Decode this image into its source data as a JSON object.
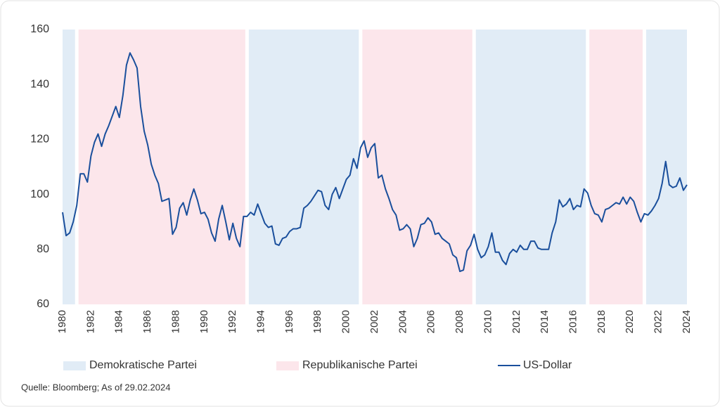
{
  "chart_data": {
    "type": "line",
    "xlim": [
      1980,
      2024
    ],
    "xticks": [
      1980,
      1982,
      1984,
      1986,
      1988,
      1990,
      1992,
      1994,
      1996,
      1998,
      2000,
      2002,
      2004,
      2006,
      2008,
      2010,
      2012,
      2014,
      2016,
      2018,
      2020,
      2022,
      2024
    ],
    "ylim": [
      60,
      160
    ],
    "yticks": [
      60,
      80,
      100,
      120,
      140,
      160
    ],
    "shading": [
      {
        "name": "Demokratische Partei",
        "color": "#e1ecf6",
        "spans": [
          [
            1980,
            1981
          ],
          [
            1993,
            2001
          ],
          [
            2009,
            2017
          ],
          [
            2021,
            2024
          ]
        ]
      },
      {
        "name": "Republikanische Partei",
        "color": "#fce6eb",
        "spans": [
          [
            1981,
            1993
          ],
          [
            2001,
            2009
          ],
          [
            2017,
            2021
          ]
        ]
      }
    ],
    "x": [
      1980,
      1980.25,
      1980.5,
      1980.75,
      1981,
      1981.25,
      1981.5,
      1981.75,
      1982,
      1982.25,
      1982.5,
      1982.75,
      1983,
      1983.25,
      1983.5,
      1983.75,
      1984,
      1984.25,
      1984.5,
      1984.75,
      1985,
      1985.25,
      1985.5,
      1985.75,
      1986,
      1986.25,
      1986.5,
      1986.75,
      1987,
      1987.25,
      1987.5,
      1987.75,
      1988,
      1988.25,
      1988.5,
      1988.75,
      1989,
      1989.25,
      1989.5,
      1989.75,
      1990,
      1990.25,
      1990.5,
      1990.75,
      1991,
      1991.25,
      1991.5,
      1991.75,
      1992,
      1992.25,
      1992.5,
      1992.75,
      1993,
      1993.25,
      1993.5,
      1993.75,
      1994,
      1994.25,
      1994.5,
      1994.75,
      1995,
      1995.25,
      1995.5,
      1995.75,
      1996,
      1996.25,
      1996.5,
      1996.75,
      1997,
      1997.25,
      1997.5,
      1997.75,
      1998,
      1998.25,
      1998.5,
      1998.75,
      1999,
      1999.25,
      1999.5,
      1999.75,
      2000,
      2000.25,
      2000.5,
      2000.75,
      2001,
      2001.25,
      2001.5,
      2001.75,
      2002,
      2002.25,
      2002.5,
      2002.75,
      2003,
      2003.25,
      2003.5,
      2003.75,
      2004,
      2004.25,
      2004.5,
      2004.75,
      2005,
      2005.25,
      2005.5,
      2005.75,
      2006,
      2006.25,
      2006.5,
      2006.75,
      2007,
      2007.25,
      2007.5,
      2007.75,
      2008,
      2008.25,
      2008.5,
      2008.75,
      2009,
      2009.25,
      2009.5,
      2009.75,
      2010,
      2010.25,
      2010.5,
      2010.75,
      2011,
      2011.25,
      2011.5,
      2011.75,
      2012,
      2012.25,
      2012.5,
      2012.75,
      2013,
      2013.25,
      2013.5,
      2013.75,
      2014,
      2014.25,
      2014.5,
      2014.75,
      2015,
      2015.25,
      2015.5,
      2015.75,
      2016,
      2016.25,
      2016.5,
      2016.75,
      2017,
      2017.25,
      2017.5,
      2017.75,
      2018,
      2018.25,
      2018.5,
      2018.75,
      2019,
      2019.25,
      2019.5,
      2019.75,
      2020,
      2020.25,
      2020.5,
      2020.75,
      2021,
      2021.25,
      2021.5,
      2021.75,
      2022,
      2022.25,
      2022.5,
      2022.75,
      2023,
      2023.25,
      2023.5,
      2023.75,
      2024
    ],
    "series": [
      {
        "name": "US-Dollar",
        "color": "#1a4f9c",
        "values": [
          93.5,
          85,
          86,
          90,
          96,
          107.5,
          107.5,
          104.5,
          114,
          119,
          122,
          117.5,
          122,
          125,
          128.5,
          132,
          128,
          136,
          147,
          151.5,
          149,
          146,
          132,
          123,
          118,
          111,
          107,
          104,
          97.5,
          98,
          98.5,
          85.5,
          88,
          95,
          97,
          92.5,
          98,
          102,
          98,
          93,
          93.5,
          91,
          86,
          83,
          91,
          96,
          90,
          83.5,
          89.5,
          84,
          81,
          92,
          92,
          93.5,
          92.5,
          96.5,
          93,
          89.5,
          88,
          88.5,
          82,
          81.5,
          84,
          84.5,
          86.5,
          87.5,
          87.5,
          88,
          95,
          96,
          97.5,
          99.5,
          101.5,
          101,
          96,
          94.5,
          100,
          102.5,
          98.5,
          102,
          105.5,
          107,
          113,
          109.5,
          117,
          119.5,
          113.5,
          117,
          118.5,
          106,
          107,
          102,
          98.5,
          94.5,
          92.5,
          87,
          87.5,
          89,
          87.5,
          81,
          84,
          89,
          89.5,
          91.5,
          90,
          85.5,
          86,
          84,
          83,
          82,
          78,
          77,
          72,
          72.5,
          79.5,
          81.5,
          85.5,
          80,
          77,
          78,
          81,
          86,
          79,
          79,
          76,
          74.5,
          78.5,
          80,
          79,
          81.5,
          80,
          80,
          83,
          83,
          80.5,
          80,
          80,
          80,
          86,
          90,
          98,
          95.5,
          96.5,
          98.5,
          94.5,
          96,
          95.5,
          102,
          100.5,
          96,
          93,
          92.5,
          90,
          94.5,
          95,
          96,
          97,
          96.5,
          99,
          96.5,
          99,
          97.5,
          93.5,
          90,
          93,
          92.5,
          94,
          96,
          98.5,
          104,
          112,
          103.5,
          102.5,
          103,
          106,
          101.5,
          103.5
        ]
      }
    ],
    "source": "Quelle: Bloomberg; As of 29.02.2024"
  }
}
